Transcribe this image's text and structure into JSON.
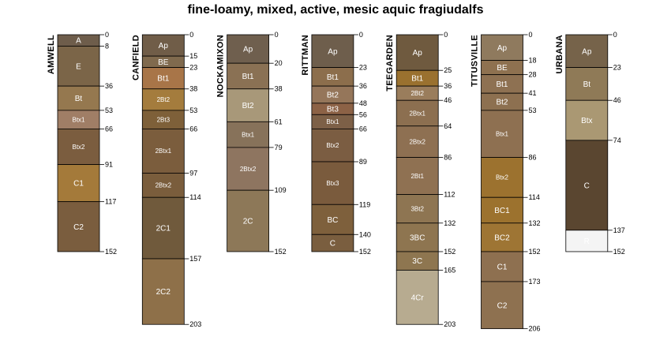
{
  "chart_data": {
    "type": "soil-profile-sketch",
    "title": "fine-loamy, mixed, active, mesic aquic fragiudalfs",
    "depth_units": "cm",
    "profiles": [
      {
        "name": "AMWELL",
        "horizons": [
          {
            "name": "A",
            "top": 0,
            "bottom": 8,
            "color": "#6E5D4B"
          },
          {
            "name": "E",
            "top": 8,
            "bottom": 36,
            "color": "#7B6548"
          },
          {
            "name": "Bt",
            "top": 36,
            "bottom": 53,
            "color": "#95784F"
          },
          {
            "name": "Btx1",
            "top": 53,
            "bottom": 66,
            "color": "#A07E66"
          },
          {
            "name": "Btx2",
            "top": 66,
            "bottom": 91,
            "color": "#7B5D3F"
          },
          {
            "name": "C1",
            "top": 91,
            "bottom": 117,
            "color": "#A47A3A"
          },
          {
            "name": "C2",
            "top": 117,
            "bottom": 152,
            "color": "#7A5D3E"
          }
        ]
      },
      {
        "name": "CANFIELD",
        "horizons": [
          {
            "name": "Ap",
            "top": 0,
            "bottom": 15,
            "color": "#705D48"
          },
          {
            "name": "BE",
            "top": 15,
            "bottom": 23,
            "color": "#806A4E"
          },
          {
            "name": "Bt1",
            "top": 23,
            "bottom": 38,
            "color": "#A87548"
          },
          {
            "name": "2Bt2",
            "top": 38,
            "bottom": 53,
            "color": "#A47C3D"
          },
          {
            "name": "2Bt3",
            "top": 53,
            "bottom": 66,
            "color": "#7E6039"
          },
          {
            "name": "2Btx1",
            "top": 66,
            "bottom": 97,
            "color": "#7B5D3D"
          },
          {
            "name": "2Btx2",
            "top": 97,
            "bottom": 114,
            "color": "#7A5D3C"
          },
          {
            "name": "2C1",
            "top": 114,
            "bottom": 157,
            "color": "#705A3C"
          },
          {
            "name": "2C2",
            "top": 157,
            "bottom": 203,
            "color": "#8E7049"
          }
        ]
      },
      {
        "name": "NOCKAMIXON",
        "horizons": [
          {
            "name": "Ap",
            "top": 0,
            "bottom": 20,
            "color": "#6F5F4E"
          },
          {
            "name": "Bt1",
            "top": 20,
            "bottom": 38,
            "color": "#8A7154"
          },
          {
            "name": "Bt2",
            "top": 38,
            "bottom": 61,
            "color": "#A89879"
          },
          {
            "name": "Btx1",
            "top": 61,
            "bottom": 79,
            "color": "#87725A"
          },
          {
            "name": "2Btx2",
            "top": 79,
            "bottom": 109,
            "color": "#8E7560"
          },
          {
            "name": "2C",
            "top": 109,
            "bottom": 152,
            "color": "#8D7858"
          }
        ]
      },
      {
        "name": "RITTMAN",
        "horizons": [
          {
            "name": "Ap",
            "top": 0,
            "bottom": 23,
            "color": "#6E5E4C"
          },
          {
            "name": "Bt1",
            "top": 23,
            "bottom": 36,
            "color": "#8C6E4C"
          },
          {
            "name": "Bt2",
            "top": 36,
            "bottom": 48,
            "color": "#95765A"
          },
          {
            "name": "Bt3",
            "top": 48,
            "bottom": 56,
            "color": "#8C6246"
          },
          {
            "name": "Btx1",
            "top": 56,
            "bottom": 66,
            "color": "#7D6047"
          },
          {
            "name": "Btx2",
            "top": 66,
            "bottom": 89,
            "color": "#7B5D42"
          },
          {
            "name": "Btx3",
            "top": 89,
            "bottom": 119,
            "color": "#7A5B3D"
          },
          {
            "name": "BC",
            "top": 119,
            "bottom": 140,
            "color": "#7E603C"
          },
          {
            "name": "C",
            "top": 140,
            "bottom": 152,
            "color": "#7A5E3F"
          }
        ]
      },
      {
        "name": "TEEGARDEN",
        "horizons": [
          {
            "name": "Ap",
            "top": 0,
            "bottom": 25,
            "color": "#6F5A3F"
          },
          {
            "name": "Bt1",
            "top": 25,
            "bottom": 36,
            "color": "#9A712F"
          },
          {
            "name": "2Bt2",
            "top": 36,
            "bottom": 46,
            "color": "#9A7D5C"
          },
          {
            "name": "2Btx1",
            "top": 46,
            "bottom": 64,
            "color": "#8C6F50"
          },
          {
            "name": "2Btx2",
            "top": 64,
            "bottom": 86,
            "color": "#8E7052"
          },
          {
            "name": "2Bt1",
            "top": 86,
            "bottom": 112,
            "color": "#8F7152"
          },
          {
            "name": "3Bt2",
            "top": 112,
            "bottom": 132,
            "color": "#8E7552"
          },
          {
            "name": "3BC",
            "top": 132,
            "bottom": 152,
            "color": "#8E7550"
          },
          {
            "name": "3C",
            "top": 152,
            "bottom": 165,
            "color": "#8E7650"
          },
          {
            "name": "4Cr",
            "top": 165,
            "bottom": 203,
            "color": "#B7AB90"
          }
        ]
      },
      {
        "name": "TITUSVILLE",
        "horizons": [
          {
            "name": "Ap",
            "top": 0,
            "bottom": 18,
            "color": "#8F7A5E"
          },
          {
            "name": "BE",
            "top": 18,
            "bottom": 28,
            "color": "#8E7150"
          },
          {
            "name": "Bt1",
            "top": 28,
            "bottom": 41,
            "color": "#8E7152"
          },
          {
            "name": "Bt2",
            "top": 41,
            "bottom": 53,
            "color": "#8D7050"
          },
          {
            "name": "Btx1",
            "top": 53,
            "bottom": 86,
            "color": "#8E7051"
          },
          {
            "name": "Btx2",
            "top": 86,
            "bottom": 114,
            "color": "#9C722F"
          },
          {
            "name": "BC1",
            "top": 114,
            "bottom": 132,
            "color": "#9C722E"
          },
          {
            "name": "BC2",
            "top": 132,
            "bottom": 152,
            "color": "#9E7534"
          },
          {
            "name": "C1",
            "top": 152,
            "bottom": 173,
            "color": "#8E7050"
          },
          {
            "name": "C2",
            "top": 173,
            "bottom": 206,
            "color": "#8E7150"
          }
        ]
      },
      {
        "name": "URBANA",
        "horizons": [
          {
            "name": "Ap",
            "top": 0,
            "bottom": 23,
            "color": "#76634A"
          },
          {
            "name": "Bt",
            "top": 23,
            "bottom": 46,
            "color": "#8F7A57"
          },
          {
            "name": "Btx",
            "top": 46,
            "bottom": 74,
            "color": "#AA9873"
          },
          {
            "name": "C",
            "top": 74,
            "bottom": 137,
            "color": "#5A4630"
          },
          {
            "name": "R",
            "top": 137,
            "bottom": 152,
            "color": "#F4F4F4"
          }
        ]
      }
    ]
  }
}
